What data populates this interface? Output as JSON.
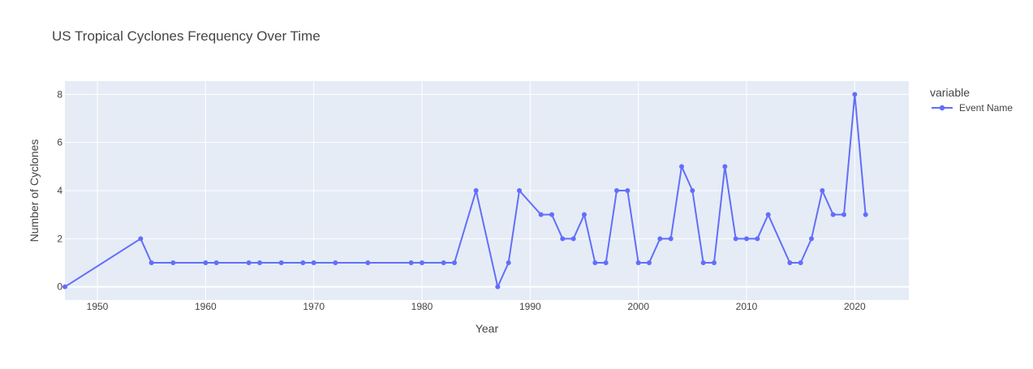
{
  "chart_data": {
    "type": "line",
    "title": "US Tropical Cyclones Frequency Over Time",
    "xlabel": "Year",
    "ylabel": "Number of Cyclones",
    "xlim": [
      1947,
      2025
    ],
    "ylim": [
      -0.55,
      8.55
    ],
    "x_ticks": [
      1950,
      1960,
      1970,
      1980,
      1990,
      2000,
      2010,
      2020
    ],
    "y_ticks": [
      0,
      2,
      4,
      6,
      8
    ],
    "grid": true,
    "legend": {
      "title": "variable",
      "placement": "right"
    },
    "series": [
      {
        "name": "Event Name",
        "color": "#636efa",
        "mode": "lines+markers",
        "x": [
          1947,
          1954,
          1955,
          1957,
          1960,
          1961,
          1964,
          1965,
          1967,
          1969,
          1970,
          1972,
          1975,
          1979,
          1980,
          1982,
          1983,
          1985,
          1987,
          1988,
          1989,
          1991,
          1992,
          1993,
          1994,
          1995,
          1996,
          1997,
          1998,
          1999,
          2000,
          2001,
          2002,
          2003,
          2004,
          2005,
          2006,
          2007,
          2008,
          2009,
          2010,
          2011,
          2012,
          2014,
          2015,
          2016,
          2017,
          2018,
          2019,
          2020,
          2021
        ],
        "y": [
          0,
          2,
          1,
          1,
          1,
          1,
          1,
          1,
          1,
          1,
          1,
          1,
          1,
          1,
          1,
          1,
          1,
          4,
          0,
          1,
          4,
          3,
          3,
          2,
          2,
          3,
          1,
          1,
          4,
          4,
          1,
          1,
          2,
          2,
          5,
          4,
          1,
          1,
          5,
          2,
          2,
          2,
          3,
          1,
          1,
          2,
          4,
          3,
          3,
          8,
          3
        ]
      }
    ]
  }
}
